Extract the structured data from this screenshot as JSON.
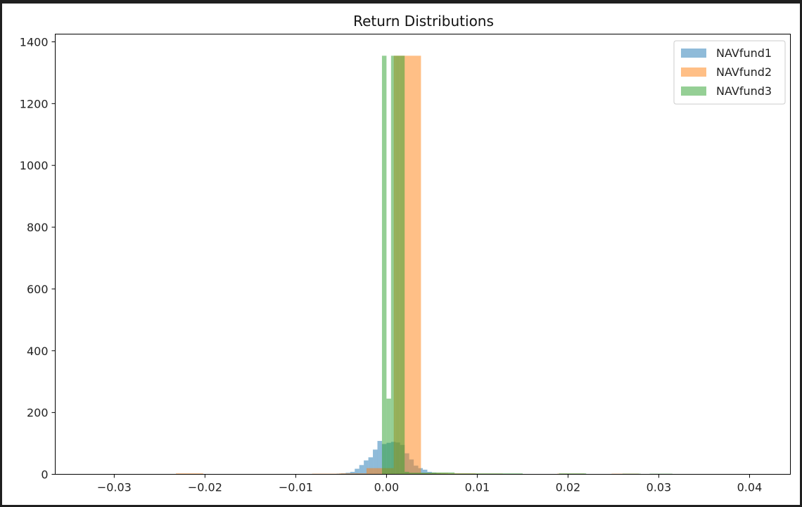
{
  "chart_data": {
    "type": "bar",
    "title": "Return Distributions",
    "xlabel": "",
    "ylabel": "",
    "xlim": [
      -0.0365,
      0.0445
    ],
    "ylim": [
      0,
      1425
    ],
    "xticks": [
      -0.03,
      -0.02,
      -0.01,
      0.0,
      0.01,
      0.02,
      0.03,
      0.04
    ],
    "xtick_labels": [
      "−0.03",
      "−0.02",
      "−0.01",
      "0.00",
      "0.01",
      "0.02",
      "0.03",
      "0.04"
    ],
    "yticks": [
      0,
      200,
      400,
      600,
      800,
      1000,
      1200,
      1400
    ],
    "ytick_labels": [
      "0",
      "200",
      "400",
      "600",
      "800",
      "1000",
      "1200",
      "1400"
    ],
    "grid": false,
    "legend": "top-right",
    "series": [
      {
        "name": "NAVfund1",
        "color": "#1f77b4",
        "bins": [
          [
            -0.008,
            -0.0075,
            1
          ],
          [
            -0.007,
            -0.0065,
            1
          ],
          [
            -0.0065,
            -0.006,
            1
          ],
          [
            -0.0055,
            -0.005,
            2
          ],
          [
            -0.005,
            -0.0045,
            3
          ],
          [
            -0.0045,
            -0.004,
            5
          ],
          [
            -0.004,
            -0.0035,
            8
          ],
          [
            -0.0035,
            -0.003,
            18
          ],
          [
            -0.003,
            -0.0025,
            30
          ],
          [
            -0.0025,
            -0.002,
            45
          ],
          [
            -0.002,
            -0.0015,
            55
          ],
          [
            -0.0015,
            -0.001,
            80
          ],
          [
            -0.001,
            -0.0005,
            108
          ],
          [
            -0.0005,
            0.0,
            98
          ],
          [
            0.0,
            0.0005,
            102
          ],
          [
            0.0005,
            0.001,
            105
          ],
          [
            0.001,
            0.0015,
            103
          ],
          [
            0.0015,
            0.002,
            95
          ],
          [
            0.002,
            0.0025,
            68
          ],
          [
            0.0025,
            0.003,
            48
          ],
          [
            0.003,
            0.0035,
            28
          ],
          [
            0.0035,
            0.004,
            20
          ],
          [
            0.004,
            0.0045,
            15
          ],
          [
            0.0045,
            0.005,
            8
          ],
          [
            0.005,
            0.0055,
            5
          ],
          [
            0.0055,
            0.006,
            3
          ],
          [
            0.006,
            0.0065,
            2
          ],
          [
            0.0065,
            0.007,
            1
          ],
          [
            0.0075,
            0.008,
            1
          ]
        ]
      },
      {
        "name": "NAVfund2",
        "color": "#ff7f0e",
        "bins": [
          [
            -0.0232,
            -0.0202,
            3
          ],
          [
            -0.0082,
            -0.0052,
            2
          ],
          [
            -0.0052,
            -0.0022,
            3
          ],
          [
            -0.0022,
            0.0008,
            20
          ],
          [
            0.0008,
            0.0038,
            1355
          ],
          [
            0.0038,
            0.0068,
            4
          ],
          [
            0.0068,
            0.0098,
            3
          ],
          [
            0.0098,
            0.0128,
            2
          ],
          [
            0.0128,
            0.0158,
            1
          ],
          [
            0.0188,
            0.0218,
            2
          ],
          [
            0.0218,
            0.0248,
            1
          ],
          [
            0.0248,
            0.0278,
            2
          ]
        ]
      },
      {
        "name": "NAVfund3",
        "color": "#2ca02c",
        "bins": [
          [
            -0.0005,
            0.0,
            1355
          ],
          [
            0.0,
            0.0005,
            245
          ],
          [
            0.0005,
            0.001,
            1355
          ],
          [
            0.001,
            0.0015,
            1355
          ],
          [
            0.0015,
            0.002,
            1355
          ],
          [
            0.002,
            0.0025,
            8
          ],
          [
            0.0025,
            0.005,
            5
          ],
          [
            0.005,
            0.0075,
            6
          ],
          [
            0.0075,
            0.01,
            3
          ],
          [
            0.01,
            0.015,
            3
          ],
          [
            0.019,
            0.022,
            3
          ],
          [
            0.026,
            0.028,
            2
          ],
          [
            0.029,
            0.0315,
            2
          ]
        ]
      }
    ]
  }
}
